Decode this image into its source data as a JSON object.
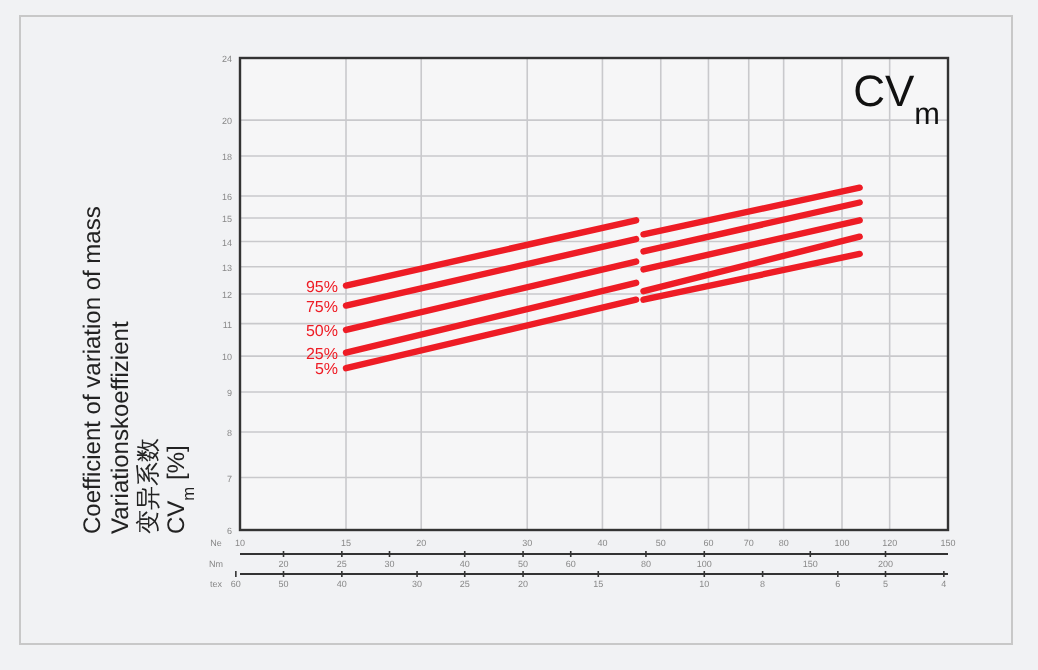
{
  "chart_data": {
    "type": "line",
    "title": "CV$_{m}$",
    "ylabel": "Coefficient of variation of mass\nVariationskoeffizient\n变异系数\nCV$_{m}$ [%]",
    "xlabel": "Ne",
    "annotations": [
      "Nm",
      "20",
      "25",
      "30",
      "40",
      "50",
      "60",
      "80",
      "100",
      "150",
      "200",
      "tex",
      "60",
      "50",
      "40",
      "30",
      "25",
      "20",
      "15",
      "10",
      "8",
      "6",
      "5",
      "4"
    ],
    "log": "xy",
    "grid": true,
    "xlim": [
      10,
      150
    ],
    "xticks": [
      10,
      15,
      20,
      30,
      40,
      50,
      60,
      70,
      80,
      100,
      120,
      150
    ],
    "ylim": [
      6,
      24
    ],
    "yticks": [
      6,
      7,
      8,
      9,
      10,
      11,
      12,
      13,
      14,
      15,
      16,
      18,
      20,
      24
    ],
    "series": [
      {
        "name": "95%",
        "color": "#ee1c25",
        "x": [
          15,
          45.5,
          46,
          46.8,
          107
        ],
        "values": [
          12.3,
          14.9,
          null,
          14.3,
          16.4
        ]
      },
      {
        "name": "75%",
        "color": "#ee1c25",
        "x": [
          15,
          45.5,
          46,
          46.8,
          107
        ],
        "values": [
          11.6,
          14.1,
          null,
          13.6,
          15.7
        ]
      },
      {
        "name": "50%",
        "color": "#ee1c25",
        "x": [
          15,
          45.5,
          46,
          46.8,
          107
        ],
        "values": [
          10.8,
          13.2,
          null,
          12.9,
          14.9
        ]
      },
      {
        "name": "25%",
        "color": "#ee1c25",
        "x": [
          15,
          45.5,
          46,
          46.8,
          107
        ],
        "values": [
          10.1,
          12.4,
          null,
          12.1,
          14.2
        ]
      },
      {
        "name": "5%",
        "color": "#ee1c25",
        "x": [
          15,
          45.5,
          46,
          46.8,
          107
        ],
        "values": [
          9.65,
          11.8,
          null,
          11.8,
          13.5
        ]
      }
    ]
  }
}
